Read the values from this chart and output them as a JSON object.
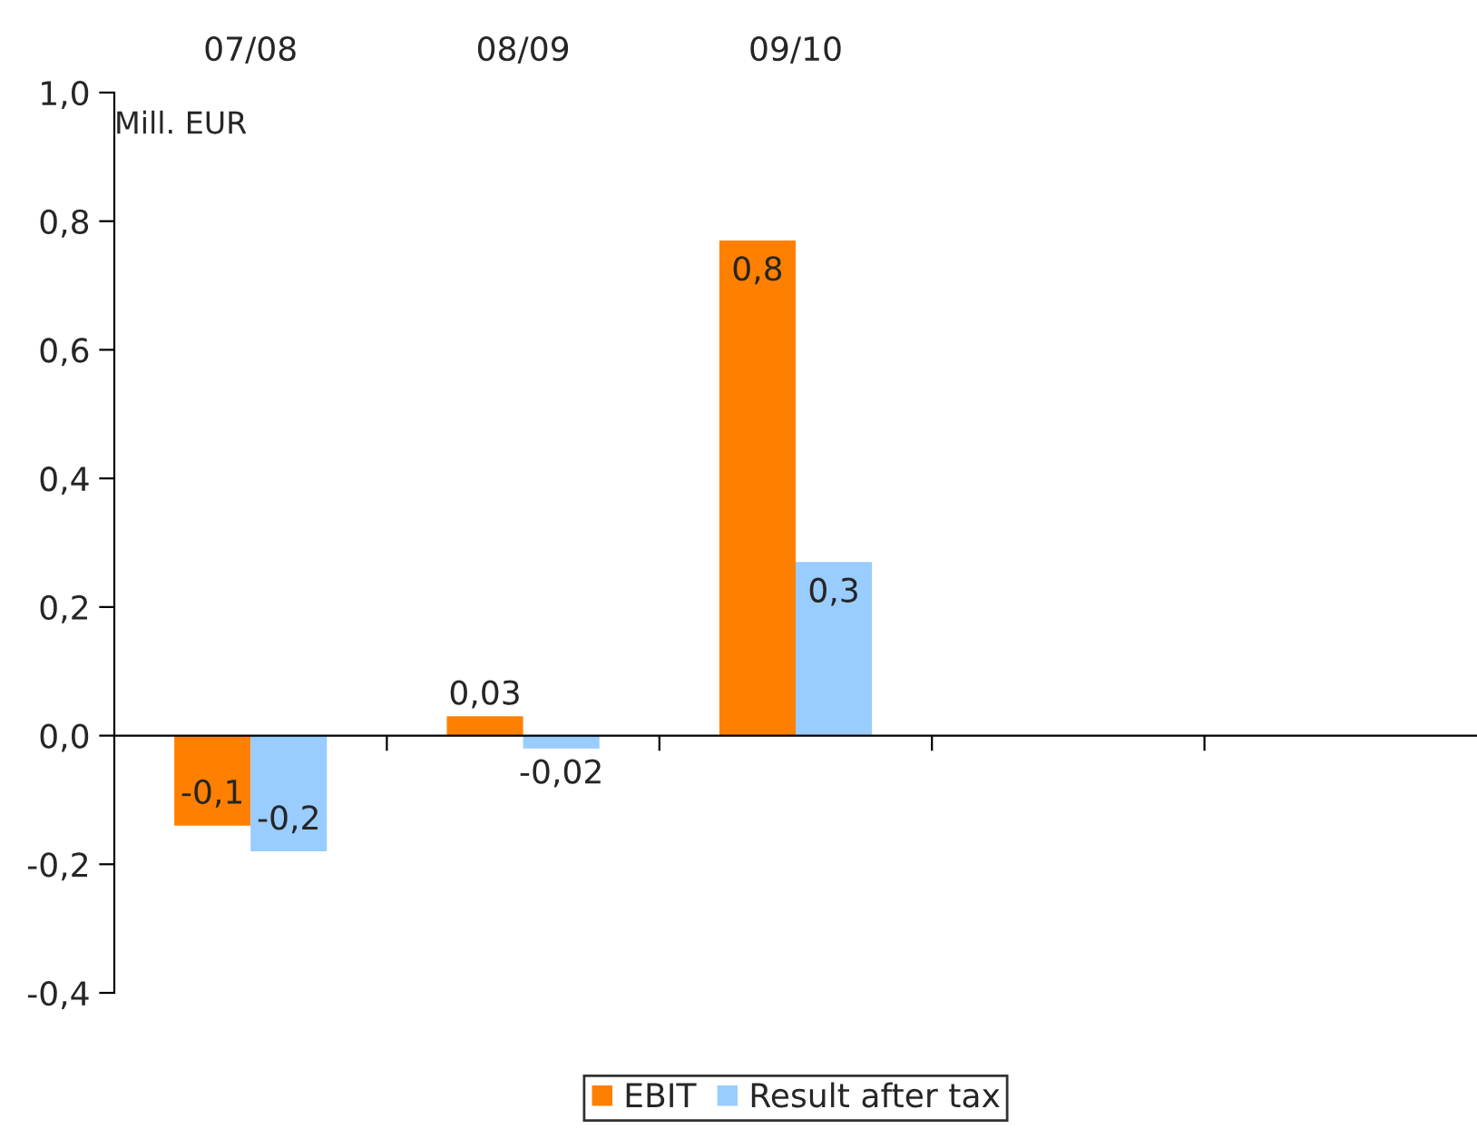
{
  "chart_data": {
    "type": "bar",
    "categories": [
      "07/08",
      "08/09",
      "09/10",
      null,
      null
    ],
    "series": [
      {
        "name": "EBIT",
        "color": "#ff8000",
        "values": [
          -0.14,
          0.03,
          0.77,
          null,
          null
        ],
        "value_labels": [
          "-0,1",
          "0,03",
          "0,8",
          null,
          null
        ]
      },
      {
        "name": "Result after tax",
        "color": "#99ccff",
        "values": [
          -0.18,
          -0.02,
          0.27,
          null,
          null
        ],
        "value_labels": [
          "-0,2",
          "-0,02",
          "0,3",
          null,
          null
        ]
      }
    ],
    "ylim": [
      -0.4,
      1.0
    ],
    "yticks": [
      {
        "value": -0.4,
        "label": "-0,4"
      },
      {
        "value": -0.2,
        "label": "-0,2"
      },
      {
        "value": 0,
        "label": "0,0"
      },
      {
        "value": 0.2,
        "label": "0,2"
      },
      {
        "value": 0.4,
        "label": "0,4"
      },
      {
        "value": 0.6,
        "label": "0,6"
      },
      {
        "value": 0.8,
        "label": "0,8"
      },
      {
        "value": 1.0,
        "label": "1,0"
      }
    ],
    "annotations": [
      "Mill. EUR"
    ],
    "legend": "bottom"
  }
}
